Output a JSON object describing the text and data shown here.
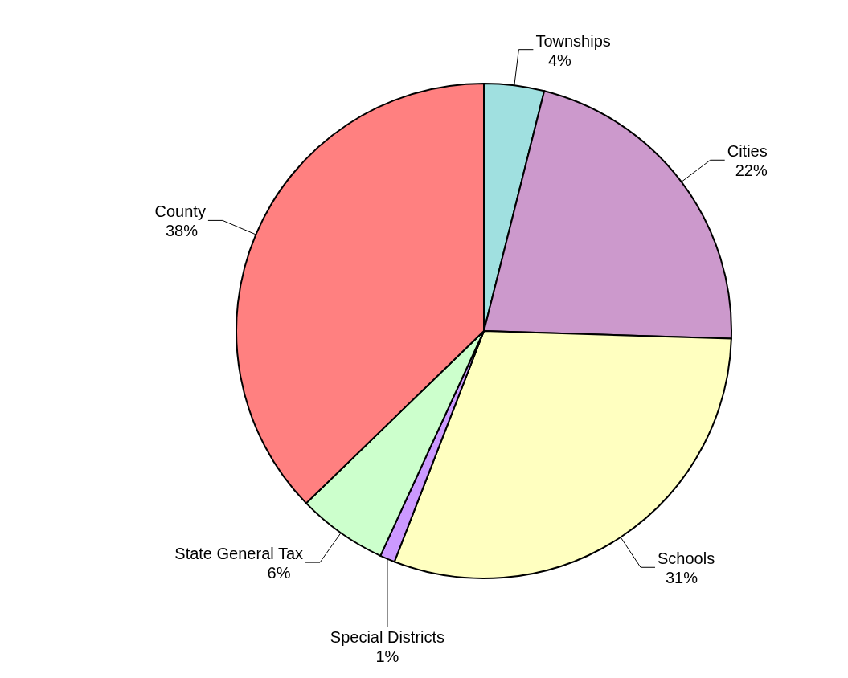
{
  "chart_data": {
    "type": "pie",
    "categories": [
      "Townships",
      "Cities",
      "Schools",
      "Special Districts",
      "State General Tax",
      "County"
    ],
    "values": [
      4,
      22,
      31,
      1,
      6,
      38
    ],
    "value_labels": [
      "4%",
      "22%",
      "31%",
      "1%",
      "6%",
      "38%"
    ],
    "colors": [
      "#a0e0e0",
      "#cc99cc",
      "#ffffc0",
      "#cc99ff",
      "#ccffcc",
      "#ff8080"
    ],
    "legend": false
  }
}
